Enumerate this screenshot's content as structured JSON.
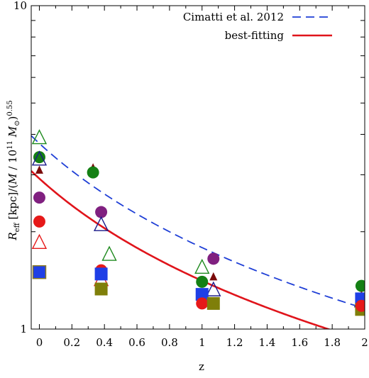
{
  "chart_data": {
    "type": "scatter",
    "title": "",
    "xlabel": "z",
    "ylabel": "R_eff [kpc]/(M/10^11 M_sun)^0.55",
    "ylabel_parts": {
      "r": "R",
      "eff": "eff",
      "kpc": " [kpc]/(",
      "m": "M",
      "slash": " / 10",
      "exp11": "11",
      "msun": " M",
      "sun": "⊙",
      "close": ")",
      "exp055": "0.55"
    },
    "xlim": [
      -0.05,
      2.0
    ],
    "ylim": [
      1,
      10
    ],
    "yscale": "log",
    "grid": false,
    "legend_position": "top-right",
    "x_ticks": [
      {
        "value": 0,
        "label": "0"
      },
      {
        "value": 0.2,
        "label": "0.2"
      },
      {
        "value": 0.4,
        "label": "0.4"
      },
      {
        "value": 0.6,
        "label": "0.6"
      },
      {
        "value": 0.8,
        "label": "0.8"
      },
      {
        "value": 1.0,
        "label": "1"
      },
      {
        "value": 1.2,
        "label": "1.2"
      },
      {
        "value": 1.4,
        "label": "1.4"
      },
      {
        "value": 1.6,
        "label": "1.6"
      },
      {
        "value": 1.8,
        "label": "1.8"
      },
      {
        "value": 2.0,
        "label": "2"
      }
    ],
    "y_ticks": [
      {
        "value": 1,
        "label": "1"
      },
      {
        "value": 10,
        "label": "10"
      }
    ],
    "lines": [
      {
        "name": "Cimatti et al. 2012",
        "style": "dashed",
        "color": "#1f3fd6",
        "a": 3.75,
        "b": -1.07
      },
      {
        "name": "best-fitting",
        "style": "solid",
        "color": "#e0141b",
        "a": 2.92,
        "b": -1.05
      }
    ],
    "points": [
      {
        "x": 0.0,
        "y": 3.9,
        "marker": "triangle-open",
        "color": "#1e8a1e"
      },
      {
        "x": 0.0,
        "y": 3.4,
        "marker": "circle",
        "color": "#148014"
      },
      {
        "x": 0.0,
        "y": 3.35,
        "marker": "triangle-open",
        "color": "#1a1a8a"
      },
      {
        "x": 0.0,
        "y": 3.1,
        "marker": "triangle-small",
        "color": "#7a0a0a"
      },
      {
        "x": 0.0,
        "y": 2.55,
        "marker": "circle",
        "color": "#802080"
      },
      {
        "x": 0.0,
        "y": 2.15,
        "marker": "circle",
        "color": "#e61919"
      },
      {
        "x": 0.0,
        "y": 1.85,
        "marker": "triangle-open",
        "color": "#e61919"
      },
      {
        "x": 0.0,
        "y": 1.5,
        "marker": "square-outlined",
        "color": "#1f3fe6"
      },
      {
        "x": 0.33,
        "y": 3.15,
        "marker": "triangle-small",
        "color": "#7a0a0a"
      },
      {
        "x": 0.33,
        "y": 3.05,
        "marker": "circle",
        "color": "#148014"
      },
      {
        "x": 0.38,
        "y": 2.3,
        "marker": "circle",
        "color": "#802080"
      },
      {
        "x": 0.38,
        "y": 2.1,
        "marker": "triangle-open",
        "color": "#1a1a8a"
      },
      {
        "x": 0.43,
        "y": 1.7,
        "marker": "triangle-open",
        "color": "#1e8a1e"
      },
      {
        "x": 0.38,
        "y": 1.52,
        "marker": "circle",
        "color": "#e61919"
      },
      {
        "x": 0.38,
        "y": 1.42,
        "marker": "triangle-open",
        "color": "#e61919"
      },
      {
        "x": 0.38,
        "y": 1.48,
        "marker": "square",
        "color": "#1f3fe6"
      },
      {
        "x": 0.38,
        "y": 1.33,
        "marker": "square",
        "color": "#7f7f0a"
      },
      {
        "x": 1.0,
        "y": 1.55,
        "marker": "triangle-open",
        "color": "#1e8a1e"
      },
      {
        "x": 1.07,
        "y": 1.65,
        "marker": "circle",
        "color": "#802080"
      },
      {
        "x": 1.07,
        "y": 1.45,
        "marker": "triangle-small",
        "color": "#7a0a0a"
      },
      {
        "x": 1.0,
        "y": 1.4,
        "marker": "circle",
        "color": "#148014"
      },
      {
        "x": 1.07,
        "y": 1.32,
        "marker": "triangle-open",
        "color": "#1a1a8a"
      },
      {
        "x": 1.0,
        "y": 1.28,
        "marker": "square",
        "color": "#1f3fe6"
      },
      {
        "x": 1.0,
        "y": 1.2,
        "marker": "circle",
        "color": "#e61919"
      },
      {
        "x": 1.07,
        "y": 1.2,
        "marker": "square",
        "color": "#7f7f0a"
      },
      {
        "x": 1.98,
        "y": 1.36,
        "marker": "circle",
        "color": "#148014"
      },
      {
        "x": 1.98,
        "y": 1.27,
        "marker": "triangle-small",
        "color": "#7a0a0a"
      },
      {
        "x": 1.98,
        "y": 1.22,
        "marker": "triangle-open",
        "color": "#1a1a8a"
      },
      {
        "x": 1.98,
        "y": 1.24,
        "marker": "square",
        "color": "#1f3fe6"
      },
      {
        "x": 1.98,
        "y": 1.15,
        "marker": "square",
        "color": "#7f7f0a"
      },
      {
        "x": 1.98,
        "y": 1.18,
        "marker": "circle",
        "color": "#e61919"
      }
    ]
  }
}
